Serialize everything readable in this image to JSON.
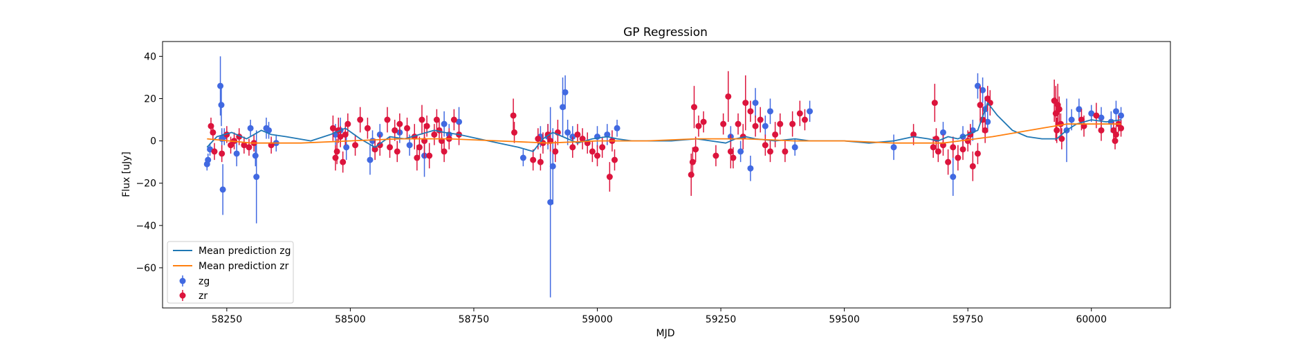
{
  "chart_data": {
    "type": "scatter",
    "title": "GP Regression",
    "xlabel": "MJD",
    "ylabel": "Flux [uJy]",
    "xlim": [
      58120,
      60160
    ],
    "ylim": [
      -79,
      47
    ],
    "xticks": [
      58250,
      58500,
      58750,
      59000,
      59250,
      59500,
      59750,
      60000
    ],
    "yticks": [
      -60,
      -40,
      -20,
      0,
      20,
      40
    ],
    "grid": false,
    "legend_position": "lower left",
    "colors": {
      "mean_zg": "#1f77b4",
      "mean_zr": "#ff7f0e",
      "zg": "#4169e1",
      "zr": "#dc143c"
    },
    "series": [
      {
        "name": "Mean prediction zg",
        "kind": "line",
        "color": "#1f77b4",
        "x": [
          58210,
          58230,
          58260,
          58290,
          58320,
          58340,
          58370,
          58420,
          58460,
          58490,
          58520,
          58550,
          58580,
          58610,
          58640,
          58670,
          58690,
          58720,
          58760,
          58800,
          58840,
          58870,
          58890,
          58910,
          58930,
          58960,
          58990,
          59020,
          59040,
          59070,
          59100,
          59150,
          59200,
          59230,
          59260,
          59280,
          59300,
          59320,
          59360,
          59400,
          59430,
          59460,
          59500,
          59550,
          59600,
          59640,
          59670,
          59690,
          59710,
          59730,
          59750,
          59770,
          59790,
          59810,
          59840,
          59870,
          59900,
          59930,
          59950,
          59970,
          60000,
          60030,
          60060
        ],
        "y": [
          -3,
          2,
          4,
          1,
          5,
          3,
          2,
          0,
          3,
          6,
          1,
          -3,
          2,
          1,
          3,
          5,
          4,
          3,
          1,
          -1,
          -3,
          -5,
          1,
          4,
          2,
          -1,
          1,
          2,
          1,
          0,
          0,
          0,
          1,
          0,
          -1,
          1,
          2,
          1,
          0,
          1,
          0,
          0,
          0,
          -1,
          0,
          2,
          1,
          0,
          2,
          1,
          3,
          5,
          18,
          12,
          5,
          2,
          1,
          1,
          5,
          8,
          10,
          9,
          10
        ]
      },
      {
        "name": "Mean prediction zr",
        "kind": "line",
        "color": "#ff7f0e",
        "x": [
          58210,
          58300,
          58400,
          58500,
          58600,
          58700,
          58800,
          58900,
          59000,
          59100,
          59200,
          59300,
          59400,
          59500,
          59600,
          59700,
          59800,
          59850,
          59900,
          59950,
          60000,
          60060
        ],
        "y": [
          1,
          -1,
          -1,
          0,
          1,
          1,
          0,
          -1,
          0,
          0,
          1,
          1,
          0,
          0,
          -1,
          -1,
          2,
          4,
          6,
          8,
          8,
          8
        ]
      },
      {
        "name": "zg",
        "kind": "errorbar",
        "color": "#4169e1",
        "x": [
          58210,
          58212,
          58216,
          58237,
          58239,
          58240,
          58242,
          58245,
          58270,
          58298,
          58308,
          58310,
          58330,
          58335,
          58350,
          58470,
          58480,
          58492,
          58540,
          58545,
          58560,
          58600,
          58620,
          58650,
          58690,
          58700,
          58720,
          58850,
          58885,
          58900,
          58905,
          58910,
          58930,
          58935,
          58940,
          58950,
          59000,
          59020,
          59040,
          59270,
          59290,
          59310,
          59320,
          59340,
          59350,
          59400,
          59430,
          59600,
          59700,
          59720,
          59740,
          59760,
          59770,
          59780,
          59785,
          59790,
          59950,
          59960,
          59975,
          60000,
          60020,
          60040,
          60050,
          60060
        ],
        "y": [
          -11,
          -9,
          -4,
          26,
          17,
          1,
          -23,
          2,
          -6,
          6,
          -7,
          -17,
          6,
          5,
          -1,
          3,
          5,
          -3,
          -9,
          0,
          3,
          4,
          -2,
          -7,
          8,
          3,
          9,
          -8,
          2,
          2,
          -29,
          -12,
          16,
          23,
          4,
          2,
          2,
          3,
          6,
          2,
          -5,
          -13,
          18,
          7,
          14,
          -3,
          14,
          -3,
          4,
          -17,
          2,
          5,
          26,
          24,
          15,
          9,
          5,
          10,
          15,
          13,
          11,
          9,
          14,
          12
        ],
        "err": [
          3,
          3,
          3,
          14,
          10,
          5,
          12,
          4,
          6,
          4,
          5,
          22,
          5,
          4,
          4,
          5,
          6,
          6,
          7,
          5,
          5,
          5,
          5,
          10,
          6,
          5,
          7,
          4,
          5,
          6,
          45,
          18,
          14,
          8,
          6,
          5,
          5,
          5,
          4,
          5,
          5,
          6,
          7,
          5,
          6,
          4,
          5,
          6,
          5,
          9,
          5,
          5,
          6,
          6,
          6,
          5,
          15,
          5,
          5,
          4,
          5,
          5,
          5,
          4
        ]
      },
      {
        "name": "zr",
        "kind": "errorbar",
        "color": "#dc143c",
        "x": [
          58218,
          58222,
          58225,
          58240,
          58250,
          58258,
          58265,
          58275,
          58285,
          58295,
          58305,
          58340,
          58465,
          58470,
          58473,
          58476,
          58480,
          58485,
          58490,
          58495,
          58510,
          58520,
          58535,
          58550,
          58560,
          58575,
          58580,
          58590,
          58595,
          58600,
          58615,
          58630,
          58635,
          58640,
          58645,
          58650,
          58655,
          58660,
          58670,
          58675,
          58680,
          58685,
          58690,
          58700,
          58710,
          58720,
          58830,
          58832,
          58870,
          58880,
          58885,
          58890,
          58900,
          58905,
          58915,
          58920,
          58950,
          58960,
          58970,
          58980,
          58990,
          59000,
          59010,
          59025,
          59030,
          59035,
          59190,
          59193,
          59196,
          59199,
          59205,
          59215,
          59240,
          59255,
          59265,
          59270,
          59275,
          59285,
          59295,
          59300,
          59310,
          59320,
          59330,
          59340,
          59350,
          59360,
          59370,
          59380,
          59395,
          59410,
          59420,
          59640,
          59680,
          59683,
          59686,
          59690,
          59700,
          59710,
          59720,
          59730,
          59740,
          59750,
          59755,
          59760,
          59770,
          59775,
          59780,
          59785,
          59790,
          59795,
          59925,
          59928,
          59930,
          59932,
          59935,
          59938,
          59940,
          59980,
          59985,
          60010,
          60020,
          60045,
          60048,
          60050,
          60055,
          60060
        ],
        "y": [
          7,
          4,
          -5,
          -6,
          3,
          -2,
          0,
          2,
          -2,
          -3,
          -1,
          -2,
          6,
          -8,
          -5,
          5,
          2,
          -10,
          3,
          8,
          -2,
          10,
          6,
          -4,
          -2,
          10,
          -3,
          5,
          -5,
          8,
          6,
          2,
          -8,
          -3,
          10,
          0,
          7,
          -7,
          3,
          10,
          5,
          0,
          -5,
          1,
          10,
          3,
          12,
          4,
          -9,
          1,
          -10,
          -1,
          3,
          0,
          -5,
          4,
          -3,
          3,
          1,
          -1,
          -5,
          -7,
          -3,
          -17,
          0,
          -9,
          -16,
          -10,
          16,
          -4,
          7,
          9,
          -7,
          8,
          21,
          -5,
          -8,
          8,
          2,
          18,
          14,
          7,
          10,
          -2,
          -5,
          3,
          8,
          -5,
          8,
          13,
          10,
          3,
          -3,
          18,
          1,
          -5,
          -2,
          -10,
          -3,
          -8,
          -4,
          0,
          3,
          -12,
          -6,
          17,
          10,
          5,
          20,
          18,
          19,
          13,
          5,
          17,
          15,
          8,
          1,
          10,
          7,
          12,
          5,
          5,
          0,
          3,
          8,
          6
        ],
        "err": [
          4,
          4,
          4,
          4,
          4,
          4,
          4,
          4,
          4,
          4,
          4,
          4,
          6,
          6,
          6,
          6,
          5,
          5,
          5,
          5,
          5,
          6,
          5,
          5,
          5,
          6,
          5,
          5,
          5,
          5,
          5,
          6,
          6,
          5,
          7,
          8,
          5,
          6,
          5,
          5,
          5,
          5,
          5,
          5,
          5,
          5,
          8,
          5,
          5,
          5,
          4,
          5,
          5,
          5,
          5,
          6,
          5,
          5,
          5,
          5,
          5,
          5,
          5,
          7,
          5,
          5,
          10,
          7,
          10,
          6,
          5,
          5,
          5,
          5,
          12,
          8,
          5,
          5,
          6,
          13,
          5,
          5,
          6,
          5,
          5,
          6,
          5,
          5,
          6,
          6,
          5,
          5,
          5,
          9,
          5,
          5,
          5,
          6,
          5,
          6,
          5,
          5,
          5,
          7,
          5,
          9,
          6,
          6,
          6,
          6,
          10,
          13,
          6,
          10,
          6,
          5,
          5,
          5,
          5,
          6,
          5,
          4,
          4,
          4,
          4,
          4
        ]
      }
    ]
  }
}
